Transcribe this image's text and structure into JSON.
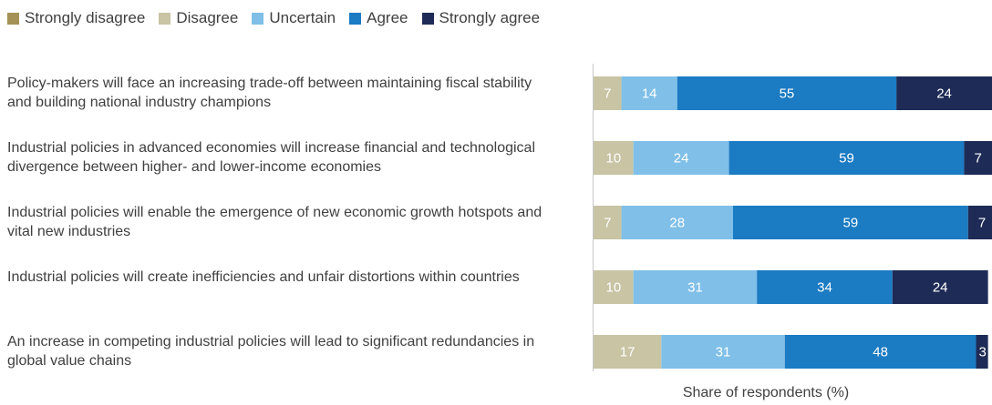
{
  "chart_data": {
    "type": "bar",
    "orientation": "horizontal",
    "stacked": true,
    "legend_position": "top-left",
    "xlabel": "Share of respondents (%)",
    "xlim": [
      0,
      100
    ],
    "categories": [
      "Policy-makers will face an increasing trade-off between maintaining fiscal stability and building national industry champions",
      "Industrial policies in advanced economies will increase financial and technological divergence between higher- and lower-income economies",
      "Industrial policies will enable the emergence of new economic growth hotspots and vital new industries",
      "Industrial policies will create inefficiencies and unfair distortions within countries",
      "An increase in competing industrial policies will lead to significant redundancies in global value chains"
    ],
    "series": [
      {
        "name": "Strongly disagree",
        "color": "#a49156",
        "values": [
          0,
          0,
          0,
          0,
          0
        ]
      },
      {
        "name": "Disagree",
        "color": "#c8c4a4",
        "values": [
          7,
          10,
          7,
          10,
          17
        ]
      },
      {
        "name": "Uncertain",
        "color": "#7fbfe8",
        "values": [
          14,
          24,
          28,
          31,
          31
        ]
      },
      {
        "name": "Agree",
        "color": "#1b7bc3",
        "values": [
          55,
          59,
          59,
          34,
          48
        ]
      },
      {
        "name": "Strongly agree",
        "color": "#1e2b56",
        "values": [
          24,
          7,
          7,
          24,
          3
        ]
      }
    ]
  }
}
